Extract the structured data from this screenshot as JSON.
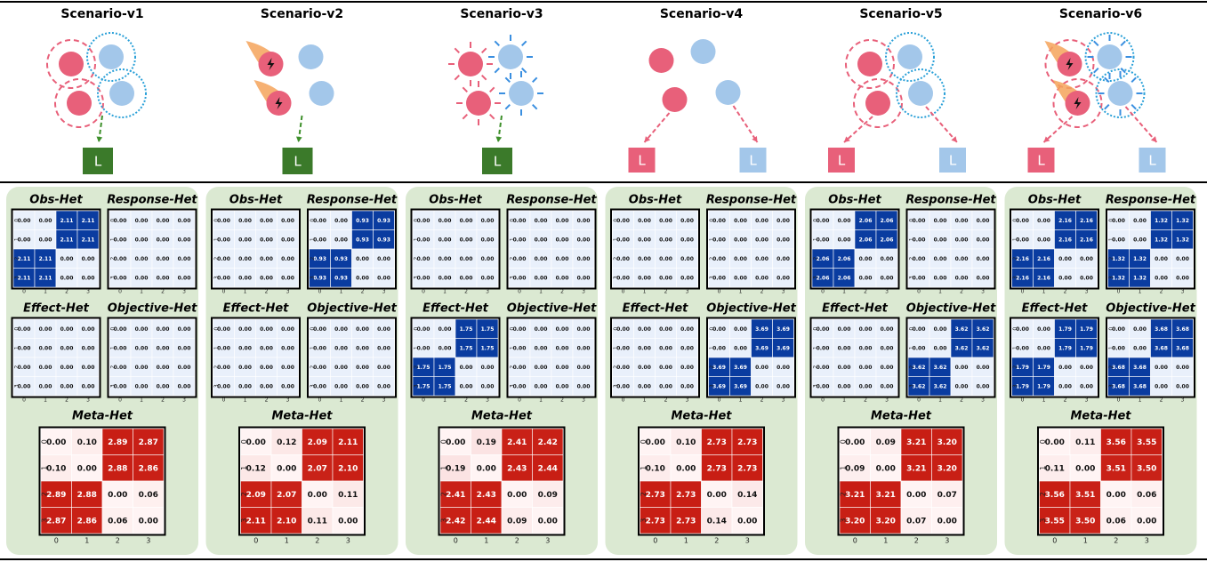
{
  "tick_labels": [
    "0",
    "1",
    "2",
    "3"
  ],
  "panel_titles": [
    "Obs-Het",
    "Response-Het",
    "Effect-Het",
    "Objective-Het",
    "Meta-Het"
  ],
  "scenarios": [
    {
      "title": "Scenario-v1",
      "leaders": [
        "L"
      ],
      "matrices": [
        [
          [
            "0.00",
            "0.00",
            "2.11",
            "2.11"
          ],
          [
            "0.00",
            "0.00",
            "2.11",
            "2.11"
          ],
          [
            "2.11",
            "2.11",
            "0.00",
            "0.00"
          ],
          [
            "2.11",
            "2.11",
            "0.00",
            "0.00"
          ]
        ],
        [
          [
            "0.00",
            "0.00",
            "0.00",
            "0.00"
          ],
          [
            "0.00",
            "0.00",
            "0.00",
            "0.00"
          ],
          [
            "0.00",
            "0.00",
            "0.00",
            "0.00"
          ],
          [
            "0.00",
            "0.00",
            "0.00",
            "0.00"
          ]
        ],
        [
          [
            "0.00",
            "0.00",
            "0.00",
            "0.00"
          ],
          [
            "0.00",
            "0.00",
            "0.00",
            "0.00"
          ],
          [
            "0.00",
            "0.00",
            "0.00",
            "0.00"
          ],
          [
            "0.00",
            "0.00",
            "0.00",
            "0.00"
          ]
        ],
        [
          [
            "0.00",
            "0.00",
            "0.00",
            "0.00"
          ],
          [
            "0.00",
            "0.00",
            "0.00",
            "0.00"
          ],
          [
            "0.00",
            "0.00",
            "0.00",
            "0.00"
          ],
          [
            "0.00",
            "0.00",
            "0.00",
            "0.00"
          ]
        ],
        [
          [
            "0.00",
            "0.10",
            "2.89",
            "2.87"
          ],
          [
            "0.10",
            "0.00",
            "2.88",
            "2.86"
          ],
          [
            "2.89",
            "2.88",
            "0.00",
            "0.06"
          ],
          [
            "2.87",
            "2.86",
            "0.06",
            "0.00"
          ]
        ]
      ]
    },
    {
      "title": "Scenario-v2",
      "leaders": [
        "L"
      ],
      "matrices": [
        [
          [
            "0.00",
            "0.00",
            "0.00",
            "0.00"
          ],
          [
            "0.00",
            "0.00",
            "0.00",
            "0.00"
          ],
          [
            "0.00",
            "0.00",
            "0.00",
            "0.00"
          ],
          [
            "0.00",
            "0.00",
            "0.00",
            "0.00"
          ]
        ],
        [
          [
            "0.00",
            "0.00",
            "0.93",
            "0.93"
          ],
          [
            "0.00",
            "0.00",
            "0.93",
            "0.93"
          ],
          [
            "0.93",
            "0.93",
            "0.00",
            "0.00"
          ],
          [
            "0.93",
            "0.93",
            "0.00",
            "0.00"
          ]
        ],
        [
          [
            "0.00",
            "0.00",
            "0.00",
            "0.00"
          ],
          [
            "0.00",
            "0.00",
            "0.00",
            "0.00"
          ],
          [
            "0.00",
            "0.00",
            "0.00",
            "0.00"
          ],
          [
            "0.00",
            "0.00",
            "0.00",
            "0.00"
          ]
        ],
        [
          [
            "0.00",
            "0.00",
            "0.00",
            "0.00"
          ],
          [
            "0.00",
            "0.00",
            "0.00",
            "0.00"
          ],
          [
            "0.00",
            "0.00",
            "0.00",
            "0.00"
          ],
          [
            "0.00",
            "0.00",
            "0.00",
            "0.00"
          ]
        ],
        [
          [
            "0.00",
            "0.12",
            "2.09",
            "2.11"
          ],
          [
            "0.12",
            "0.00",
            "2.07",
            "2.10"
          ],
          [
            "2.09",
            "2.07",
            "0.00",
            "0.11"
          ],
          [
            "2.11",
            "2.10",
            "0.11",
            "0.00"
          ]
        ]
      ]
    },
    {
      "title": "Scenario-v3",
      "leaders": [
        "L"
      ],
      "matrices": [
        [
          [
            "0.00",
            "0.00",
            "0.00",
            "0.00"
          ],
          [
            "0.00",
            "0.00",
            "0.00",
            "0.00"
          ],
          [
            "0.00",
            "0.00",
            "0.00",
            "0.00"
          ],
          [
            "0.00",
            "0.00",
            "0.00",
            "0.00"
          ]
        ],
        [
          [
            "0.00",
            "0.00",
            "0.00",
            "0.00"
          ],
          [
            "0.00",
            "0.00",
            "0.00",
            "0.00"
          ],
          [
            "0.00",
            "0.00",
            "0.00",
            "0.00"
          ],
          [
            "0.00",
            "0.00",
            "0.00",
            "0.00"
          ]
        ],
        [
          [
            "0.00",
            "0.00",
            "1.75",
            "1.75"
          ],
          [
            "0.00",
            "0.00",
            "1.75",
            "1.75"
          ],
          [
            "1.75",
            "1.75",
            "0.00",
            "0.00"
          ],
          [
            "1.75",
            "1.75",
            "0.00",
            "0.00"
          ]
        ],
        [
          [
            "0.00",
            "0.00",
            "0.00",
            "0.00"
          ],
          [
            "0.00",
            "0.00",
            "0.00",
            "0.00"
          ],
          [
            "0.00",
            "0.00",
            "0.00",
            "0.00"
          ],
          [
            "0.00",
            "0.00",
            "0.00",
            "0.00"
          ]
        ],
        [
          [
            "0.00",
            "0.19",
            "2.41",
            "2.42"
          ],
          [
            "0.19",
            "0.00",
            "2.43",
            "2.44"
          ],
          [
            "2.41",
            "2.43",
            "0.00",
            "0.09"
          ],
          [
            "2.42",
            "2.44",
            "0.09",
            "0.00"
          ]
        ]
      ]
    },
    {
      "title": "Scenario-v4",
      "leaders": [
        "L",
        "L"
      ],
      "matrices": [
        [
          [
            "0.00",
            "0.00",
            "0.00",
            "0.00"
          ],
          [
            "0.00",
            "0.00",
            "0.00",
            "0.00"
          ],
          [
            "0.00",
            "0.00",
            "0.00",
            "0.00"
          ],
          [
            "0.00",
            "0.00",
            "0.00",
            "0.00"
          ]
        ],
        [
          [
            "0.00",
            "0.00",
            "0.00",
            "0.00"
          ],
          [
            "0.00",
            "0.00",
            "0.00",
            "0.00"
          ],
          [
            "0.00",
            "0.00",
            "0.00",
            "0.00"
          ],
          [
            "0.00",
            "0.00",
            "0.00",
            "0.00"
          ]
        ],
        [
          [
            "0.00",
            "0.00",
            "0.00",
            "0.00"
          ],
          [
            "0.00",
            "0.00",
            "0.00",
            "0.00"
          ],
          [
            "0.00",
            "0.00",
            "0.00",
            "0.00"
          ],
          [
            "0.00",
            "0.00",
            "0.00",
            "0.00"
          ]
        ],
        [
          [
            "0.00",
            "0.00",
            "3.69",
            "3.69"
          ],
          [
            "0.00",
            "0.00",
            "3.69",
            "3.69"
          ],
          [
            "3.69",
            "3.69",
            "0.00",
            "0.00"
          ],
          [
            "3.69",
            "3.69",
            "0.00",
            "0.00"
          ]
        ],
        [
          [
            "0.00",
            "0.10",
            "2.73",
            "2.73"
          ],
          [
            "0.10",
            "0.00",
            "2.73",
            "2.73"
          ],
          [
            "2.73",
            "2.73",
            "0.00",
            "0.14"
          ],
          [
            "2.73",
            "2.73",
            "0.14",
            "0.00"
          ]
        ]
      ]
    },
    {
      "title": "Scenario-v5",
      "leaders": [
        "L",
        "L"
      ],
      "matrices": [
        [
          [
            "0.00",
            "0.00",
            "2.06",
            "2.06"
          ],
          [
            "0.00",
            "0.00",
            "2.06",
            "2.06"
          ],
          [
            "2.06",
            "2.06",
            "0.00",
            "0.00"
          ],
          [
            "2.06",
            "2.06",
            "0.00",
            "0.00"
          ]
        ],
        [
          [
            "0.00",
            "0.00",
            "0.00",
            "0.00"
          ],
          [
            "0.00",
            "0.00",
            "0.00",
            "0.00"
          ],
          [
            "0.00",
            "0.00",
            "0.00",
            "0.00"
          ],
          [
            "0.00",
            "0.00",
            "0.00",
            "0.00"
          ]
        ],
        [
          [
            "0.00",
            "0.00",
            "0.00",
            "0.00"
          ],
          [
            "0.00",
            "0.00",
            "0.00",
            "0.00"
          ],
          [
            "0.00",
            "0.00",
            "0.00",
            "0.00"
          ],
          [
            "0.00",
            "0.00",
            "0.00",
            "0.00"
          ]
        ],
        [
          [
            "0.00",
            "0.00",
            "3.62",
            "3.62"
          ],
          [
            "0.00",
            "0.00",
            "3.62",
            "3.62"
          ],
          [
            "3.62",
            "3.62",
            "0.00",
            "0.00"
          ],
          [
            "3.62",
            "3.62",
            "0.00",
            "0.00"
          ]
        ],
        [
          [
            "0.00",
            "0.09",
            "3.21",
            "3.20"
          ],
          [
            "0.09",
            "0.00",
            "3.21",
            "3.20"
          ],
          [
            "3.21",
            "3.21",
            "0.00",
            "0.07"
          ],
          [
            "3.20",
            "3.20",
            "0.07",
            "0.00"
          ]
        ]
      ]
    },
    {
      "title": "Scenario-v6",
      "leaders": [
        "L",
        "L"
      ],
      "matrices": [
        [
          [
            "0.00",
            "0.00",
            "2.16",
            "2.16"
          ],
          [
            "0.00",
            "0.00",
            "2.16",
            "2.16"
          ],
          [
            "2.16",
            "2.16",
            "0.00",
            "0.00"
          ],
          [
            "2.16",
            "2.16",
            "0.00",
            "0.00"
          ]
        ],
        [
          [
            "0.00",
            "0.00",
            "1.32",
            "1.32"
          ],
          [
            "0.00",
            "0.00",
            "1.32",
            "1.32"
          ],
          [
            "1.32",
            "1.32",
            "0.00",
            "0.00"
          ],
          [
            "1.32",
            "1.32",
            "0.00",
            "0.00"
          ]
        ],
        [
          [
            "0.00",
            "0.00",
            "1.79",
            "1.79"
          ],
          [
            "0.00",
            "0.00",
            "1.79",
            "1.79"
          ],
          [
            "1.79",
            "1.79",
            "0.00",
            "0.00"
          ],
          [
            "1.79",
            "1.79",
            "0.00",
            "0.00"
          ]
        ],
        [
          [
            "0.00",
            "0.00",
            "3.68",
            "3.68"
          ],
          [
            "0.00",
            "0.00",
            "3.68",
            "3.68"
          ],
          [
            "3.68",
            "3.68",
            "0.00",
            "0.00"
          ],
          [
            "3.68",
            "3.68",
            "0.00",
            "0.00"
          ]
        ],
        [
          [
            "0.00",
            "0.11",
            "3.56",
            "3.55"
          ],
          [
            "0.11",
            "0.00",
            "3.51",
            "3.50"
          ],
          [
            "3.56",
            "3.51",
            "0.00",
            "0.06"
          ],
          [
            "3.55",
            "3.50",
            "0.06",
            "0.00"
          ]
        ]
      ]
    }
  ]
}
